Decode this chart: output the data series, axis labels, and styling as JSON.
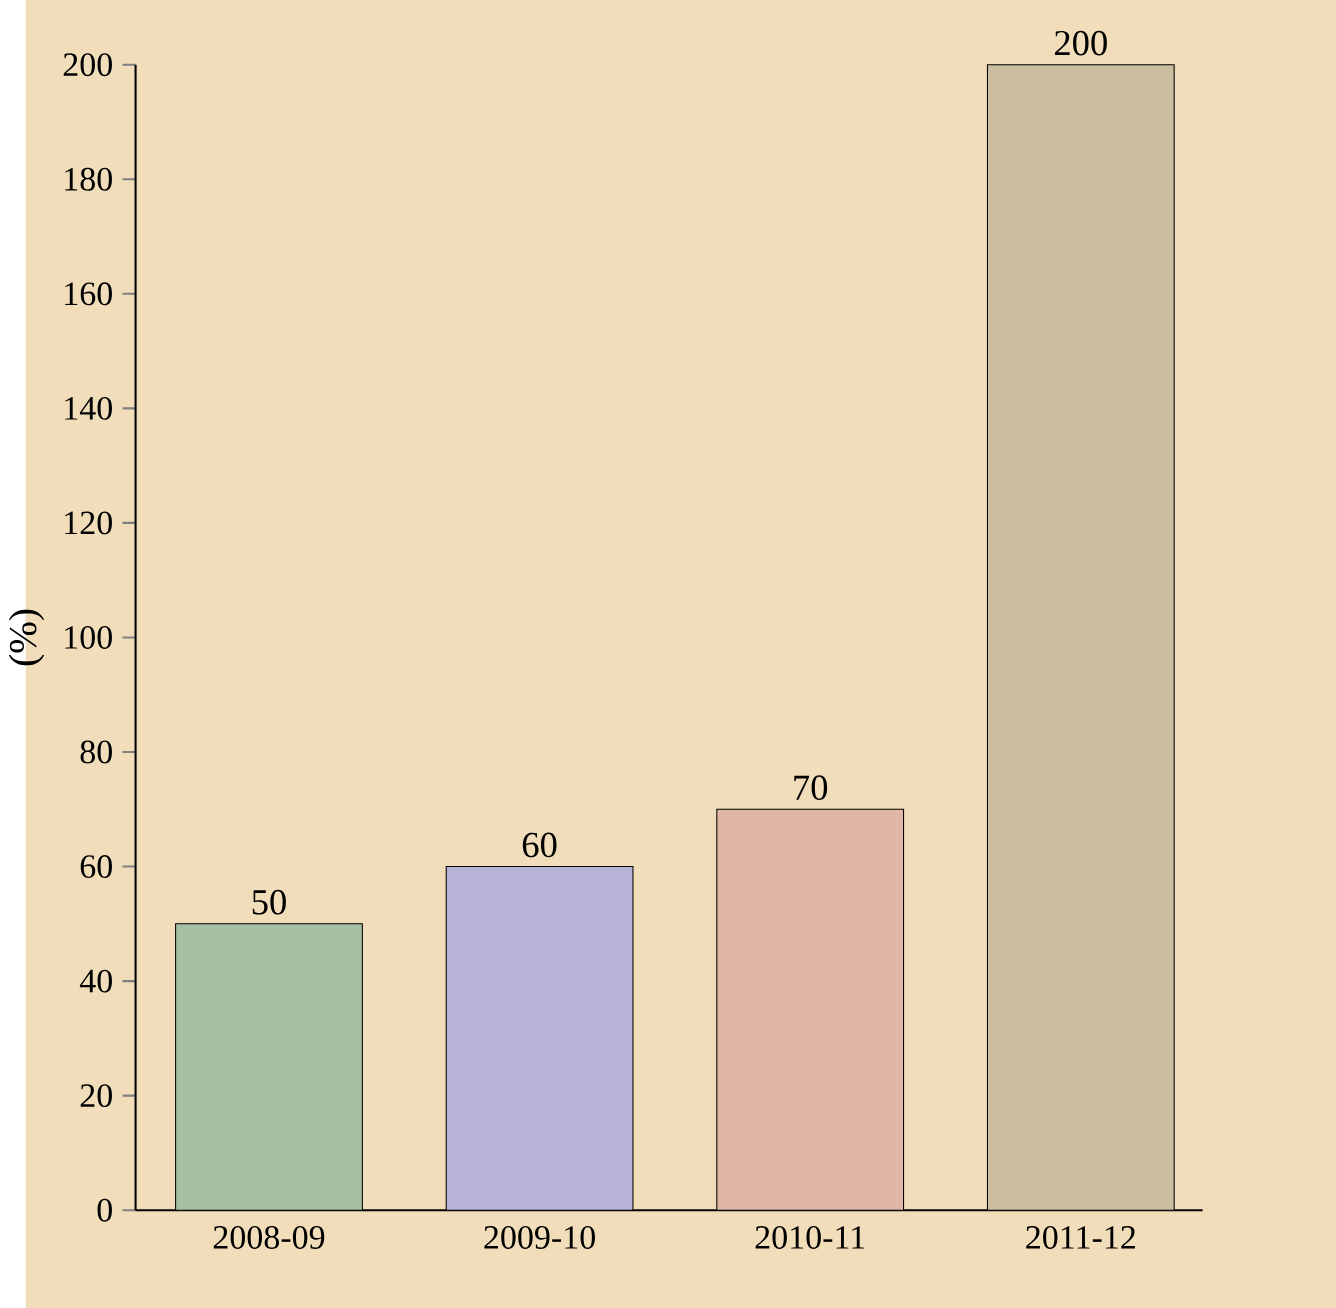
{
  "chart_data": {
    "type": "bar",
    "ylabel": "(%)",
    "categories": [
      "2008-09",
      "2009-10",
      "2010-11",
      "2011-12"
    ],
    "values": [
      50,
      60,
      70,
      200
    ],
    "colors": [
      "#a7c0a3",
      "#b7b3d8",
      "#e0b6a6",
      "#cbbd9f"
    ],
    "ylim": [
      0,
      200
    ],
    "yticks": [
      0,
      20,
      40,
      60,
      80,
      100,
      120,
      140,
      160,
      180,
      200
    ],
    "data_labels": true,
    "grid": false
  }
}
